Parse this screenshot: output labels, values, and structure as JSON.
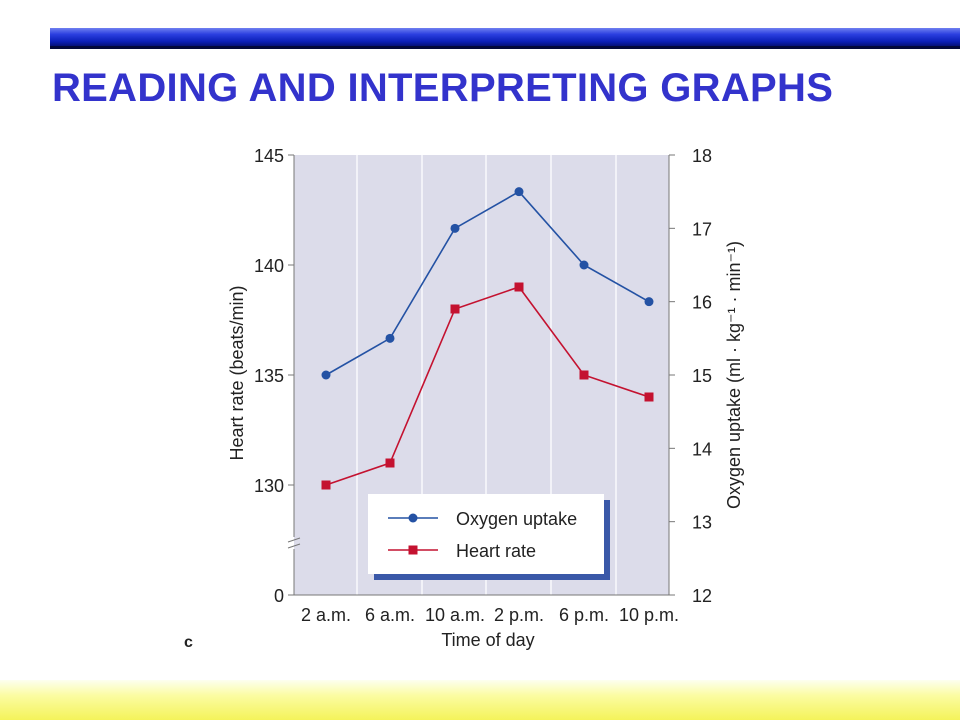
{
  "slide": {
    "title": "READING AND INTERPRETING GRAPHS",
    "colors": {
      "title": "#3333cc",
      "bar": "#1428c8",
      "band": "#f6f36a"
    }
  },
  "chart_data": {
    "type": "line",
    "panel_label": "c",
    "xlabel": "Time of day",
    "ylabel_left": "Heart rate (beats/min)",
    "ylabel_right": "Oxygen uptake (ml · kg⁻¹ · min⁻¹)",
    "categories": [
      "2 a.m.",
      "6 a.m.",
      "10 a.m.",
      "2 p.m.",
      "6 p.m.",
      "10 p.m."
    ],
    "left_axis": {
      "ticks": [
        "0",
        "130",
        "135",
        "140",
        "145"
      ],
      "broken": true,
      "range": [
        130,
        145
      ]
    },
    "right_axis": {
      "ticks": [
        "12",
        "13",
        "14",
        "15",
        "16",
        "17",
        "18"
      ],
      "range": [
        12,
        18
      ]
    },
    "series": [
      {
        "name": "Oxygen uptake",
        "axis": "right",
        "marker": "circle",
        "color": "#2452a4",
        "values": [
          15.0,
          15.5,
          17.0,
          17.5,
          16.5,
          16.0
        ]
      },
      {
        "name": "Heart rate",
        "axis": "left",
        "marker": "square",
        "color": "#c41230",
        "values": [
          130,
          131,
          138,
          139,
          135,
          134
        ]
      }
    ],
    "grid": "vertical",
    "legend": "bottom-center",
    "background": "#dcdcea"
  }
}
